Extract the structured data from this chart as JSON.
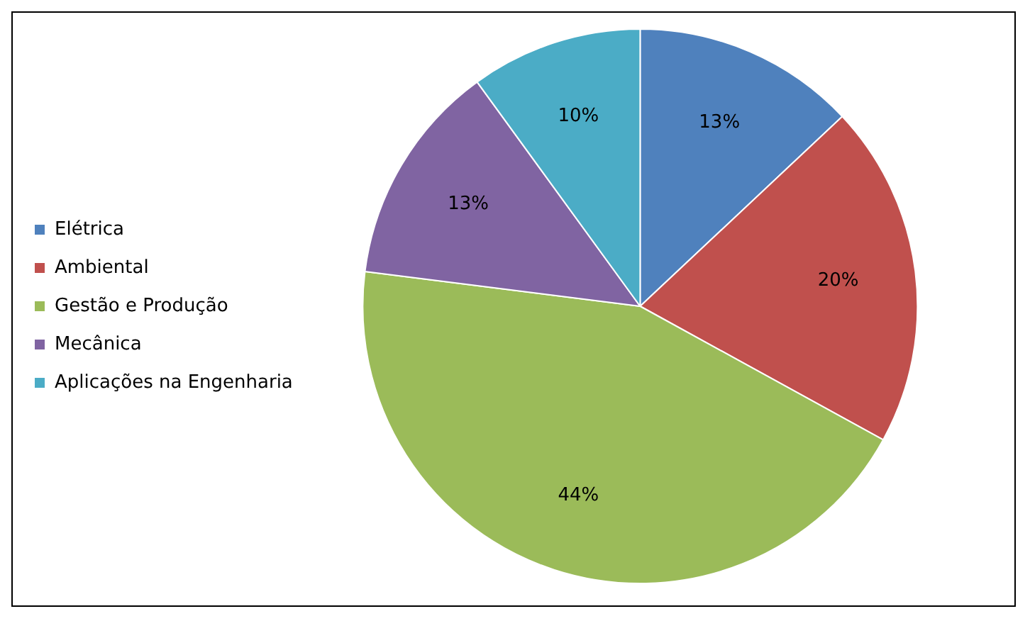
{
  "chart_data": {
    "type": "pie",
    "categories": [
      "Elétrica",
      "Ambiental",
      "Gestão e Produção",
      "Mecânica",
      "Aplicações na Engenharia"
    ],
    "values": [
      13,
      20,
      44,
      13,
      10
    ],
    "colors": [
      "#4f81bd",
      "#c0504d",
      "#9bbb59",
      "#8064a2",
      "#4bacc6"
    ],
    "value_labels": [
      "13%",
      "20%",
      "44%",
      "13%",
      "10%"
    ],
    "legend": "left"
  }
}
